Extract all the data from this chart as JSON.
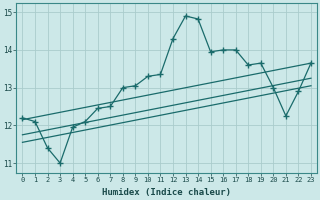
{
  "xlabel": "Humidex (Indice chaleur)",
  "xlim": [
    -0.5,
    23.5
  ],
  "ylim": [
    10.75,
    15.25
  ],
  "xticks": [
    0,
    1,
    2,
    3,
    4,
    5,
    6,
    7,
    8,
    9,
    10,
    11,
    12,
    13,
    14,
    15,
    16,
    17,
    18,
    19,
    20,
    21,
    22,
    23
  ],
  "yticks": [
    11,
    12,
    13,
    14,
    15
  ],
  "bg_color": "#cce8e8",
  "line_color": "#1a6b6b",
  "grid_color": "#b8d8d8",
  "main_line": {
    "x": [
      0,
      1,
      2,
      3,
      4,
      5,
      6,
      7,
      8,
      9,
      10,
      11,
      12,
      13,
      14,
      15,
      16,
      17,
      18,
      19,
      20,
      21,
      22,
      23
    ],
    "y": [
      12.2,
      12.1,
      11.4,
      11.0,
      11.95,
      12.1,
      12.45,
      12.5,
      13.0,
      13.05,
      13.3,
      13.35,
      14.3,
      14.9,
      14.82,
      13.95,
      14.0,
      14.0,
      13.6,
      13.65,
      13.0,
      12.25,
      12.9,
      13.65
    ]
  },
  "trend_line1": {
    "x": [
      0,
      23
    ],
    "y": [
      12.15,
      13.65
    ]
  },
  "trend_line2": {
    "x": [
      0,
      23
    ],
    "y": [
      11.75,
      13.25
    ]
  },
  "trend_line3": {
    "x": [
      0,
      23
    ],
    "y": [
      11.55,
      13.05
    ]
  }
}
